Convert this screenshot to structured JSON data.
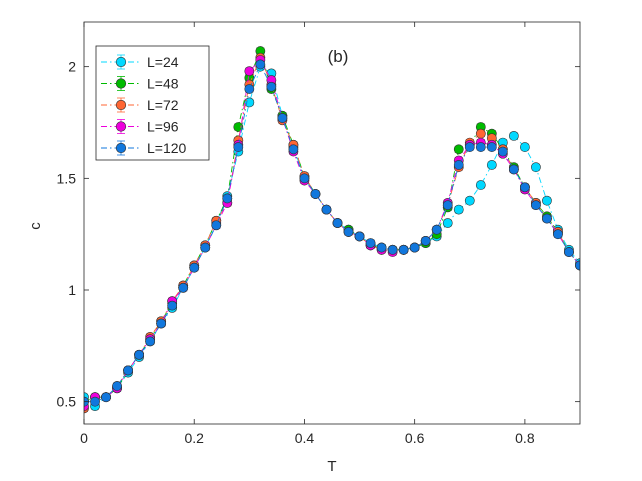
{
  "chart_data": {
    "type": "line",
    "panel_label": "(b)",
    "xlabel": "T",
    "ylabel": "c",
    "xlim": [
      0,
      0.9
    ],
    "ylim": [
      0.4,
      2.2
    ],
    "xticks": [
      0,
      0.2,
      0.4,
      0.6,
      0.8
    ],
    "xtick_labels": [
      "0",
      "0.2",
      "0.4",
      "0.6",
      "0.8"
    ],
    "yticks": [
      0.5,
      1,
      1.5,
      2
    ],
    "ytick_labels": [
      "0.5",
      "1",
      "1.5",
      "2"
    ],
    "legend_position": "top-left",
    "x": [
      0.0,
      0.02,
      0.04,
      0.06,
      0.08,
      0.1,
      0.12,
      0.14,
      0.16,
      0.18,
      0.2,
      0.22,
      0.24,
      0.26,
      0.28,
      0.3,
      0.32,
      0.34,
      0.36,
      0.38,
      0.4,
      0.42,
      0.44,
      0.46,
      0.48,
      0.5,
      0.52,
      0.54,
      0.56,
      0.58,
      0.6,
      0.62,
      0.64,
      0.66,
      0.68,
      0.7,
      0.72,
      0.74,
      0.76,
      0.78,
      0.8,
      0.82,
      0.84,
      0.86,
      0.88,
      0.9
    ],
    "series": [
      {
        "name": "L=24",
        "color": "#00d8ff",
        "values": [
          0.52,
          0.48,
          0.52,
          0.56,
          0.63,
          0.7,
          0.77,
          0.85,
          0.92,
          1.01,
          1.1,
          1.19,
          1.3,
          1.42,
          1.62,
          1.84,
          2.0,
          1.97,
          1.78,
          1.64,
          1.5,
          1.43,
          1.36,
          1.3,
          1.27,
          1.24,
          1.21,
          1.19,
          1.18,
          1.18,
          1.19,
          1.21,
          1.24,
          1.3,
          1.36,
          1.4,
          1.47,
          1.56,
          1.66,
          1.69,
          1.64,
          1.55,
          1.4,
          1.27,
          1.18,
          1.12
        ]
      },
      {
        "name": "L=48",
        "color": "#00bb00",
        "values": [
          0.5,
          0.52,
          0.52,
          0.56,
          0.64,
          0.71,
          0.78,
          0.86,
          0.94,
          1.02,
          1.11,
          1.2,
          1.31,
          1.41,
          1.73,
          1.95,
          2.07,
          1.9,
          1.78,
          1.65,
          1.51,
          1.43,
          1.36,
          1.3,
          1.27,
          1.24,
          1.2,
          1.19,
          1.18,
          1.18,
          1.19,
          1.21,
          1.25,
          1.37,
          1.63,
          1.65,
          1.73,
          1.7,
          1.63,
          1.55,
          1.46,
          1.39,
          1.33,
          1.26,
          1.17,
          1.11
        ]
      },
      {
        "name": "L=72",
        "color": "#ff6633",
        "values": [
          0.47,
          0.52,
          0.52,
          0.57,
          0.64,
          0.71,
          0.79,
          0.86,
          0.95,
          1.02,
          1.11,
          1.2,
          1.31,
          1.39,
          1.67,
          1.92,
          2.04,
          1.92,
          1.76,
          1.65,
          1.51,
          1.43,
          1.36,
          1.3,
          1.26,
          1.24,
          1.2,
          1.18,
          1.18,
          1.18,
          1.19,
          1.22,
          1.27,
          1.38,
          1.55,
          1.66,
          1.7,
          1.68,
          1.63,
          1.54,
          1.46,
          1.39,
          1.32,
          1.26,
          1.17,
          1.11
        ]
      },
      {
        "name": "L=96",
        "color": "#ee00dd",
        "values": [
          0.48,
          0.52,
          0.52,
          0.56,
          0.64,
          0.71,
          0.78,
          0.85,
          0.95,
          1.01,
          1.1,
          1.19,
          1.29,
          1.39,
          1.65,
          1.98,
          2.03,
          1.94,
          1.77,
          1.62,
          1.49,
          1.43,
          1.36,
          1.3,
          1.26,
          1.24,
          1.2,
          1.18,
          1.17,
          1.18,
          1.19,
          1.22,
          1.27,
          1.39,
          1.58,
          1.65,
          1.66,
          1.65,
          1.61,
          1.54,
          1.45,
          1.38,
          1.32,
          1.25,
          1.17,
          1.11
        ]
      },
      {
        "name": "L=120",
        "color": "#1177dd",
        "values": [
          0.5,
          0.5,
          0.52,
          0.57,
          0.64,
          0.71,
          0.77,
          0.85,
          0.93,
          1.01,
          1.1,
          1.19,
          1.29,
          1.41,
          1.64,
          1.9,
          2.01,
          1.91,
          1.77,
          1.63,
          1.5,
          1.43,
          1.36,
          1.3,
          1.26,
          1.24,
          1.21,
          1.19,
          1.18,
          1.18,
          1.19,
          1.22,
          1.27,
          1.38,
          1.56,
          1.64,
          1.64,
          1.64,
          1.62,
          1.54,
          1.46,
          1.38,
          1.32,
          1.25,
          1.17,
          1.11
        ]
      }
    ]
  }
}
